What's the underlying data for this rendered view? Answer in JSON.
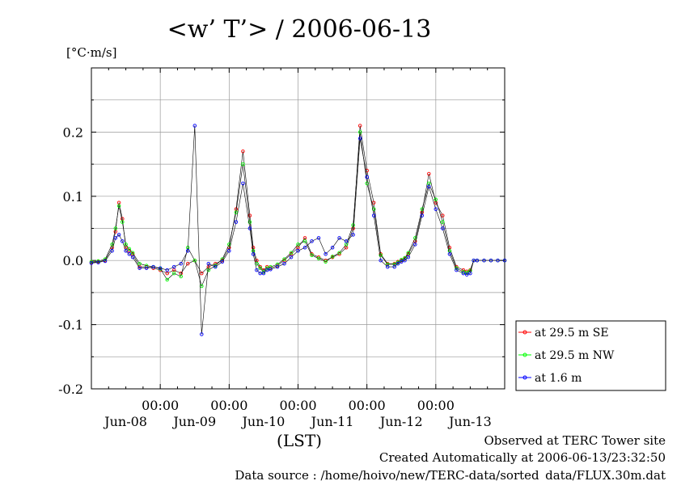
{
  "chart_data": {
    "type": "line",
    "title": "<w’ T’> / 2006-06-13",
    "ylabel": "[°C·m/s]",
    "xlabel": "(LST)",
    "ylim": [
      -0.2,
      0.3
    ],
    "xlim": [
      0,
      6
    ],
    "yticks": [
      "0.2",
      "0.1",
      "0.0",
      "-0.1",
      "-0.2"
    ],
    "ytick_values": [
      0.2,
      0.1,
      0.0,
      -0.1,
      -0.2
    ],
    "xticks_time": [
      "00:00",
      "00:00",
      "00:00",
      "00:00",
      "00:00"
    ],
    "xtick_positions": [
      1,
      2,
      3,
      4,
      5
    ],
    "day_labels": [
      "Jun-08",
      "Jun-09",
      "Jun-10",
      "Jun-11",
      "Jun-12",
      "Jun-13"
    ],
    "grid": true,
    "legend_position": "right-bottom",
    "series": [
      {
        "name": "at 29.5 m SE",
        "color": "#ff0000",
        "x": [
          0.0,
          0.1,
          0.2,
          0.3,
          0.35,
          0.4,
          0.45,
          0.5,
          0.55,
          0.6,
          0.7,
          0.8,
          0.9,
          1.0,
          1.1,
          1.2,
          1.3,
          1.4,
          1.5,
          1.6,
          1.7,
          1.8,
          1.9,
          2.0,
          2.1,
          2.2,
          2.3,
          2.35,
          2.4,
          2.45,
          2.5,
          2.55,
          2.6,
          2.7,
          2.8,
          2.9,
          3.0,
          3.1,
          3.2,
          3.3,
          3.4,
          3.5,
          3.6,
          3.7,
          3.8,
          3.9,
          4.0,
          4.1,
          4.2,
          4.3,
          4.4,
          4.45,
          4.5,
          4.55,
          4.6,
          4.7,
          4.8,
          4.9,
          5.0,
          5.1,
          5.2,
          5.3,
          5.4,
          5.45,
          5.5,
          5.55,
          5.6,
          5.7,
          5.8,
          5.9,
          6.0
        ],
        "values": [
          -0.003,
          -0.002,
          0.0,
          0.02,
          0.045,
          0.09,
          0.065,
          0.02,
          0.015,
          0.01,
          -0.01,
          -0.01,
          -0.012,
          -0.015,
          -0.02,
          -0.015,
          -0.02,
          -0.005,
          0.0,
          -0.02,
          -0.01,
          -0.005,
          0.0,
          0.02,
          0.08,
          0.17,
          0.07,
          0.02,
          0.0,
          -0.01,
          -0.015,
          -0.01,
          -0.012,
          -0.008,
          0.0,
          0.01,
          0.02,
          0.035,
          0.01,
          0.005,
          0.0,
          0.005,
          0.01,
          0.02,
          0.05,
          0.21,
          0.14,
          0.09,
          0.01,
          -0.005,
          -0.005,
          -0.002,
          0.0,
          0.003,
          0.01,
          0.03,
          0.075,
          0.135,
          0.09,
          0.07,
          0.02,
          -0.01,
          -0.015,
          -0.017,
          -0.015,
          0.0,
          0.0,
          0.0,
          0.0,
          0.0,
          0.0
        ]
      },
      {
        "name": "at 29.5 m NW",
        "color": "#00ff00",
        "x": [
          0.0,
          0.1,
          0.2,
          0.3,
          0.35,
          0.4,
          0.45,
          0.5,
          0.55,
          0.6,
          0.7,
          0.8,
          0.9,
          1.0,
          1.1,
          1.2,
          1.3,
          1.4,
          1.5,
          1.6,
          1.7,
          1.8,
          1.9,
          2.0,
          2.1,
          2.2,
          2.3,
          2.35,
          2.4,
          2.45,
          2.5,
          2.55,
          2.6,
          2.7,
          2.8,
          2.9,
          3.0,
          3.1,
          3.2,
          3.3,
          3.4,
          3.5,
          3.6,
          3.7,
          3.8,
          3.9,
          4.0,
          4.1,
          4.2,
          4.3,
          4.4,
          4.45,
          4.5,
          4.55,
          4.6,
          4.7,
          4.8,
          4.9,
          5.0,
          5.1,
          5.2,
          5.3,
          5.4,
          5.45,
          5.5,
          5.55,
          5.6,
          5.7,
          5.8,
          5.9,
          6.0
        ],
        "values": [
          -0.002,
          -0.001,
          0.002,
          0.025,
          0.05,
          0.085,
          0.06,
          0.025,
          0.018,
          0.012,
          -0.005,
          -0.008,
          -0.01,
          -0.013,
          -0.03,
          -0.02,
          -0.025,
          0.02,
          0.0,
          -0.04,
          -0.015,
          -0.008,
          0.002,
          0.025,
          0.075,
          0.15,
          0.06,
          0.015,
          -0.005,
          -0.012,
          -0.018,
          -0.012,
          -0.01,
          -0.006,
          0.002,
          0.012,
          0.025,
          0.03,
          0.008,
          0.003,
          -0.002,
          0.006,
          0.012,
          0.025,
          0.055,
          0.2,
          0.12,
          0.08,
          0.008,
          -0.006,
          -0.006,
          -0.003,
          0.001,
          0.004,
          0.012,
          0.035,
          0.08,
          0.12,
          0.095,
          0.06,
          0.015,
          -0.012,
          -0.018,
          -0.019,
          -0.016,
          0.0,
          0.0,
          0.0,
          0.0,
          0.0,
          0.0
        ]
      },
      {
        "name": "at 1.6 m",
        "color": "#0000ff",
        "x": [
          0.0,
          0.1,
          0.2,
          0.3,
          0.35,
          0.4,
          0.45,
          0.5,
          0.55,
          0.6,
          0.7,
          0.8,
          0.9,
          1.0,
          1.1,
          1.2,
          1.3,
          1.4,
          1.5,
          1.6,
          1.7,
          1.8,
          1.9,
          2.0,
          2.1,
          2.2,
          2.3,
          2.35,
          2.4,
          2.45,
          2.5,
          2.55,
          2.6,
          2.7,
          2.8,
          2.9,
          3.0,
          3.1,
          3.2,
          3.3,
          3.4,
          3.5,
          3.6,
          3.7,
          3.8,
          3.9,
          4.0,
          4.1,
          4.2,
          4.3,
          4.4,
          4.45,
          4.5,
          4.55,
          4.6,
          4.7,
          4.8,
          4.9,
          5.0,
          5.1,
          5.2,
          5.3,
          5.4,
          5.45,
          5.5,
          5.55,
          5.6,
          5.7,
          5.8,
          5.9,
          6.0
        ],
        "values": [
          -0.004,
          -0.003,
          -0.001,
          0.015,
          0.035,
          0.04,
          0.03,
          0.015,
          0.01,
          0.005,
          -0.012,
          -0.012,
          -0.01,
          -0.012,
          -0.015,
          -0.01,
          -0.005,
          0.015,
          0.21,
          -0.115,
          -0.005,
          -0.01,
          -0.002,
          0.015,
          0.06,
          0.12,
          0.05,
          0.01,
          -0.015,
          -0.02,
          -0.02,
          -0.015,
          -0.014,
          -0.01,
          -0.005,
          0.005,
          0.015,
          0.02,
          0.03,
          0.035,
          0.01,
          0.02,
          0.035,
          0.03,
          0.04,
          0.19,
          0.13,
          0.07,
          0.0,
          -0.01,
          -0.01,
          -0.005,
          -0.002,
          0.0,
          0.005,
          0.025,
          0.07,
          0.115,
          0.08,
          0.05,
          0.01,
          -0.015,
          -0.02,
          -0.022,
          -0.02,
          0.0,
          0.0,
          0.0,
          0.0,
          0.0,
          0.0
        ]
      }
    ]
  },
  "footer": {
    "line1": "Observed at TERC Tower site",
    "line2": "Created Automatically at 2006-06-13/23:32:50",
    "line3": "Data source : /home/hoivo/new/TERC-data/sorted_data/FLUX.30m.dat"
  }
}
